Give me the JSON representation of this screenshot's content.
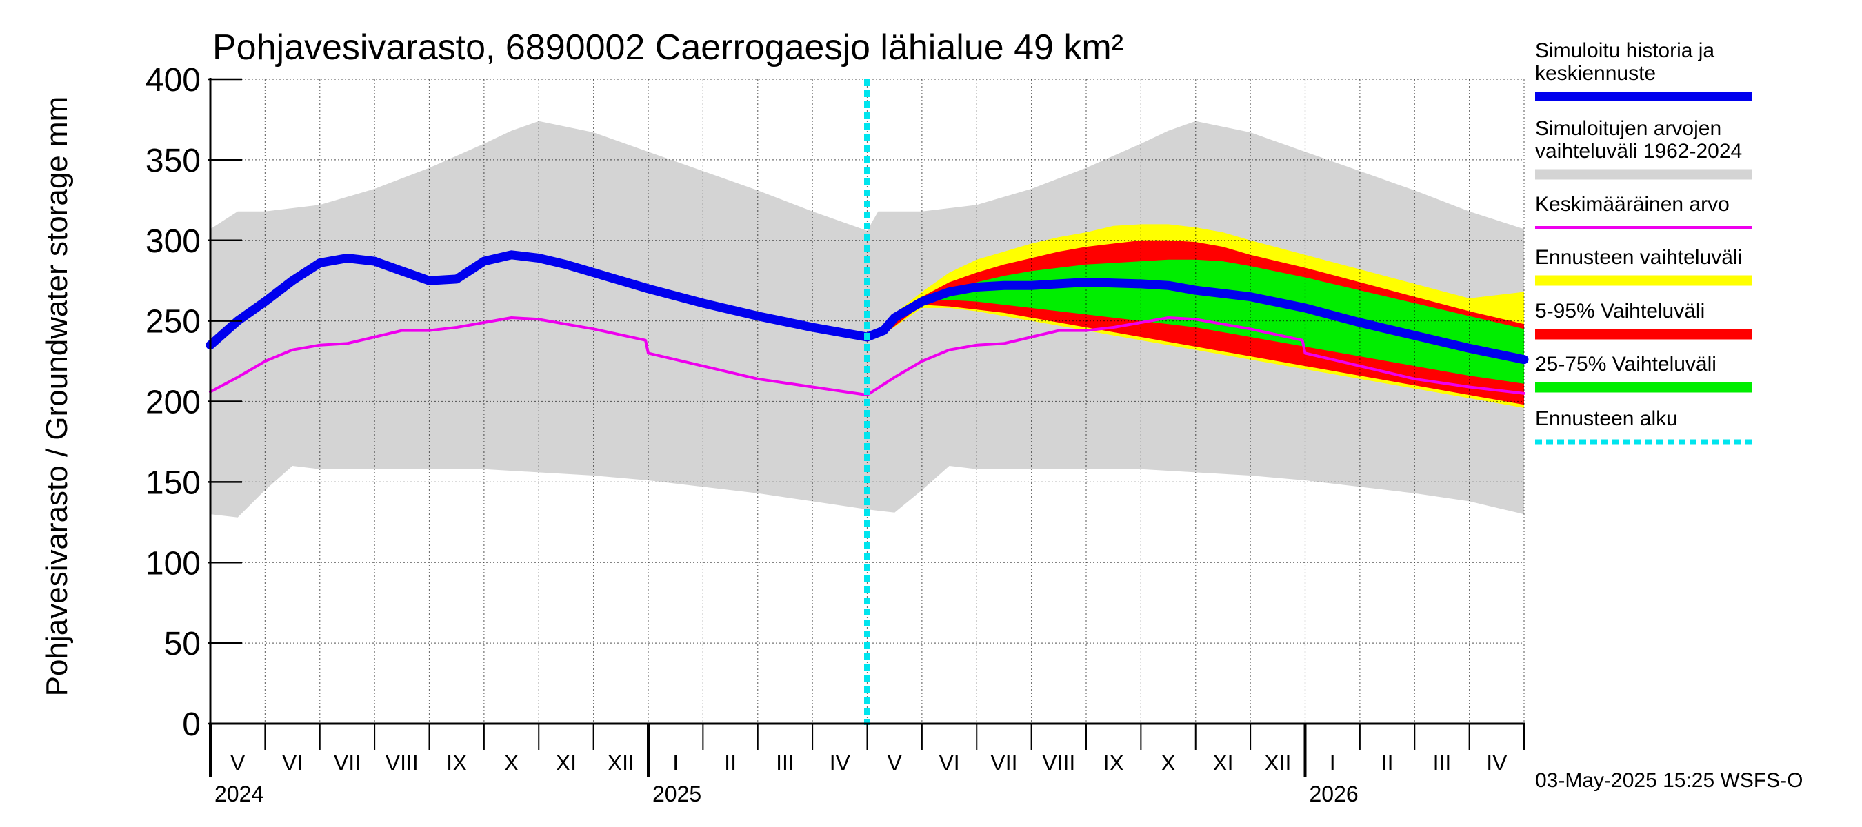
{
  "chart_data": {
    "type": "area",
    "title": "Pohjavesivarasto, 6890002 Caerrogaesjo lähialue 49 km²",
    "ylabel": "Pohjavesivarasto / Groundwater storage   mm",
    "ylim": [
      0,
      400
    ],
    "y_ticks": [
      "0",
      "50",
      "100",
      "150",
      "200",
      "250",
      "300",
      "350",
      "400"
    ],
    "x_range_months": [
      0,
      24
    ],
    "forecast_start_month": 12.0,
    "months": [
      "V",
      "VI",
      "VII",
      "VIII",
      "IX",
      "X",
      "XI",
      "XII",
      "I",
      "II",
      "III",
      "IV",
      "V",
      "VI",
      "VII",
      "VIII",
      "IX",
      "X",
      "XI",
      "XII",
      "I",
      "II",
      "III",
      "IV"
    ],
    "years": [
      {
        "label": "2024",
        "at_month": 0
      },
      {
        "label": "2025",
        "at_month": 8
      },
      {
        "label": "2026",
        "at_month": 20
      }
    ],
    "colors": {
      "history_range": "#d4d4d4",
      "simulated": "#0000ee",
      "mean": "#ee00ee",
      "forecast_range": "#ffff00",
      "p5_95": "#ff0000",
      "p25_75": "#00ee00",
      "forecast_start": "#00e5ee"
    },
    "series": [
      {
        "name": "range_upper",
        "x": [
          0,
          0.5,
          1,
          2,
          3,
          4,
          5,
          5.5,
          6,
          7,
          8,
          9,
          10,
          11,
          12,
          12.2,
          12.5,
          13,
          14,
          15,
          16,
          17,
          17.5,
          18,
          19,
          20,
          21,
          22,
          23,
          24
        ],
        "values": [
          307,
          318,
          318,
          322,
          332,
          345,
          360,
          368,
          374,
          367,
          355,
          343,
          331,
          318,
          306,
          318,
          318,
          318,
          322,
          332,
          345,
          360,
          368,
          374,
          367,
          355,
          343,
          331,
          318,
          307
        ]
      },
      {
        "name": "range_lower",
        "x": [
          0,
          0.5,
          1,
          1.5,
          2,
          3,
          4,
          5,
          6,
          7,
          8,
          9,
          10,
          11,
          12,
          12.5,
          13,
          13.5,
          14,
          15,
          16,
          17,
          18,
          19,
          20,
          21,
          22,
          23,
          24
        ],
        "values": [
          130,
          128,
          145,
          160,
          158,
          158,
          158,
          158,
          156,
          154,
          151,
          147,
          143,
          138,
          133,
          131,
          145,
          160,
          158,
          158,
          158,
          158,
          156,
          154,
          151,
          147,
          143,
          138,
          130
        ]
      },
      {
        "name": "Simuloitu historia ja keskiennuste",
        "x": [
          0,
          0.5,
          1,
          1.5,
          2,
          2.5,
          3,
          3.5,
          4,
          4.5,
          5,
          5.5,
          6,
          6.5,
          7,
          8,
          9,
          10,
          11,
          12,
          12.3,
          12.5,
          13,
          13.5,
          14,
          14.5,
          15,
          16,
          17,
          17.5,
          18,
          19,
          20,
          21,
          22,
          23,
          24
        ],
        "values": [
          235,
          250,
          262,
          275,
          286,
          289,
          287,
          281,
          275,
          276,
          287,
          291,
          289,
          285,
          280,
          270,
          261,
          253,
          246,
          240,
          244,
          252,
          262,
          268,
          271,
          272,
          272,
          274,
          273,
          272,
          269,
          265,
          258,
          249,
          241,
          233,
          226
        ]
      },
      {
        "name": "Keskimääräinen arvo",
        "x": [
          0,
          0.5,
          1,
          1.5,
          2,
          2.5,
          3,
          3.5,
          4,
          4.5,
          5,
          5.5,
          6,
          6.5,
          7,
          7.95,
          8.0,
          9,
          10,
          11,
          12,
          12.5,
          13,
          13.5,
          14,
          14.5,
          15,
          15.5,
          16,
          16.5,
          17,
          17.5,
          18,
          18.5,
          19,
          19.95,
          20.0,
          21,
          22,
          23,
          24
        ],
        "values": [
          206,
          215,
          225,
          232,
          235,
          236,
          240,
          244,
          244,
          246,
          249,
          252,
          251,
          248,
          245,
          238,
          230,
          222,
          214,
          209,
          204,
          215,
          225,
          232,
          235,
          236,
          240,
          244,
          244,
          246,
          249,
          252,
          251,
          248,
          245,
          238,
          230,
          222,
          214,
          209,
          205
        ]
      },
      {
        "name": "forecast_upper",
        "x": [
          12.4,
          13,
          13.5,
          14,
          14.5,
          15,
          15.5,
          16,
          16.5,
          17,
          17.5,
          18,
          18.5,
          19,
          20,
          21,
          22,
          23,
          24
        ],
        "values": [
          252,
          268,
          280,
          288,
          293,
          298,
          302,
          305,
          309,
          310,
          310,
          308,
          305,
          300,
          291,
          282,
          273,
          264,
          268
        ]
      },
      {
        "name": "forecast_lower",
        "x": [
          12.4,
          13,
          13.5,
          14,
          14.5,
          15,
          15.5,
          16,
          16.5,
          17,
          17.5,
          18,
          18.5,
          19,
          20,
          21,
          22,
          23,
          24
        ],
        "values": [
          244,
          258,
          258,
          256,
          253,
          250,
          247,
          244,
          241,
          238,
          235,
          232,
          229,
          226,
          220,
          214,
          208,
          202,
          196
        ]
      },
      {
        "name": "p95",
        "x": [
          12.4,
          13,
          13.5,
          14,
          14.5,
          15,
          15.5,
          16,
          16.5,
          17,
          17.5,
          18,
          18.5,
          19,
          20,
          21,
          22,
          23,
          24
        ],
        "values": [
          250,
          265,
          274,
          280,
          285,
          289,
          293,
          296,
          298,
          300,
          300,
          299,
          296,
          291,
          283,
          274,
          265,
          256,
          248
        ]
      },
      {
        "name": "p5",
        "x": [
          12.4,
          13,
          13.5,
          14,
          14.5,
          15,
          15.5,
          16,
          16.5,
          17,
          17.5,
          18,
          18.5,
          19,
          20,
          21,
          22,
          23,
          24
        ],
        "values": [
          244,
          260,
          259,
          257,
          255,
          252,
          249,
          246,
          243,
          240,
          237,
          234,
          231,
          228,
          222,
          216,
          210,
          204,
          198
        ]
      },
      {
        "name": "p75",
        "x": [
          12.4,
          13,
          13.5,
          14,
          14.5,
          15,
          15.5,
          16,
          16.5,
          17,
          17.5,
          18,
          18.5,
          19,
          20,
          21,
          22,
          23,
          24
        ],
        "values": [
          250,
          263,
          270,
          274,
          278,
          281,
          283,
          285,
          286,
          287,
          288,
          288,
          287,
          284,
          277,
          269,
          261,
          253,
          245
        ]
      },
      {
        "name": "p25",
        "x": [
          12.4,
          13,
          13.5,
          14,
          14.5,
          15,
          15.5,
          16,
          16.5,
          17,
          17.5,
          18,
          18.5,
          19,
          20,
          21,
          22,
          23,
          24
        ],
        "values": [
          246,
          262,
          263,
          262,
          260,
          258,
          256,
          254,
          252,
          250,
          248,
          246,
          243,
          240,
          234,
          228,
          222,
          216,
          211
        ]
      }
    ],
    "legend": [
      {
        "label": "Simuloitu historia ja keskiennuste",
        "color": "#0000ee",
        "style": "thick"
      },
      {
        "label": "Simuloitujen arvojen vaihteluväli 1962-2024",
        "color": "#d4d4d4",
        "style": "band"
      },
      {
        "label": "Keskimääräinen arvo",
        "color": "#ee00ee",
        "style": "thin"
      },
      {
        "label": "Ennusteen vaihteluväli",
        "color": "#ffff00",
        "style": "band"
      },
      {
        "label": "5-95% Vaihteluväli",
        "color": "#ff0000",
        "style": "band"
      },
      {
        "label": "25-75% Vaihteluväli",
        "color": "#00ee00",
        "style": "band"
      },
      {
        "label": "Ennusteen alku",
        "color": "#00e5ee",
        "style": "dotted"
      }
    ],
    "legend_lines": [
      [
        "Simuloitu historia ja",
        "keskiennuste"
      ],
      [
        "Simuloitujen arvojen",
        "vaihteluväli 1962-2024"
      ],
      [
        "Keskimääräinen arvo"
      ],
      [
        "Ennusteen vaihteluväli"
      ],
      [
        "5-95% Vaihteluväli"
      ],
      [
        "25-75% Vaihteluväli"
      ],
      [
        "Ennusteen alku"
      ]
    ],
    "footer": "03-May-2025 15:25 WSFS-O"
  }
}
